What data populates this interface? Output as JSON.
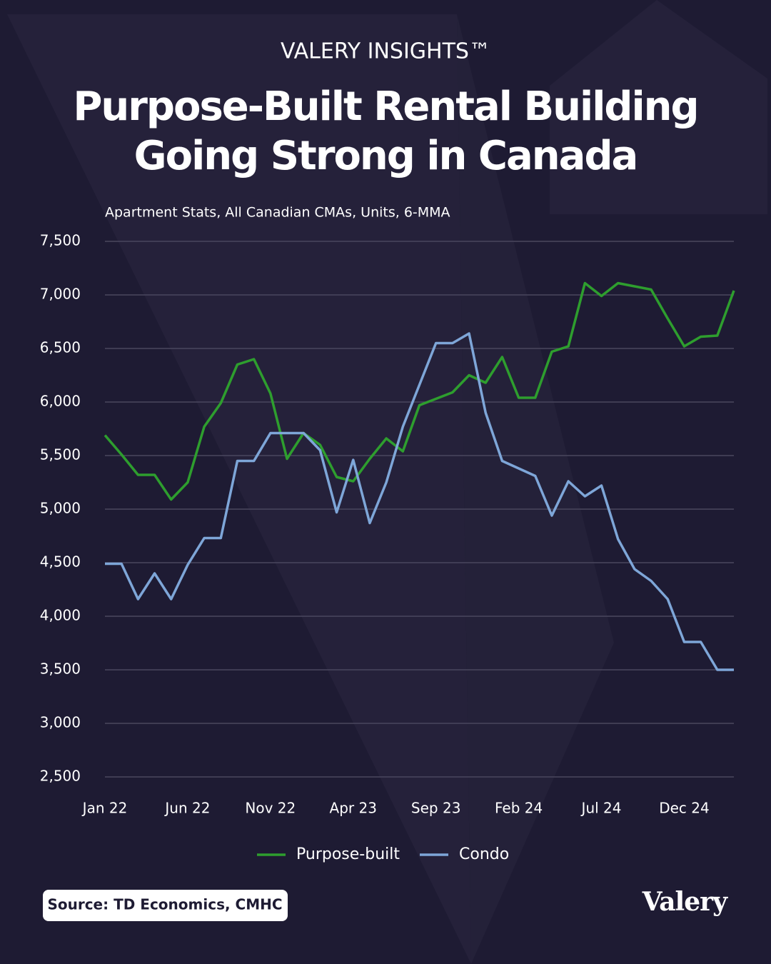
{
  "brand": "VALERY INSIGHTS™",
  "source": "Source: TD Economics, CMHC",
  "logo": "Valery",
  "chart_data": {
    "type": "line",
    "title": [
      "Purpose-Built Rental Building",
      "Going Strong in Canada"
    ],
    "subtitle": "Apartment Stats, All Canadian CMAs, Units, 6-MMA",
    "categories": [
      "Jan 22",
      null,
      null,
      null,
      null,
      "Jun 22",
      null,
      null,
      null,
      null,
      "Nov 22",
      null,
      null,
      null,
      null,
      "Apr 23",
      null,
      null,
      null,
      null,
      "Sep 23",
      null,
      null,
      null,
      null,
      "Feb 24",
      null,
      null,
      null,
      null,
      "Jul 24",
      null,
      null,
      null,
      null,
      "Dec 24",
      null,
      null,
      null
    ],
    "series": [
      {
        "name": "Purpose-built",
        "color": "#2e9e2e",
        "values": [
          5690,
          5510,
          5320,
          5320,
          5090,
          5250,
          5770,
          5990,
          6350,
          6400,
          6080,
          5470,
          5710,
          5600,
          5300,
          5260,
          5470,
          5660,
          5540,
          5970,
          6030,
          6090,
          6250,
          6180,
          6420,
          6040,
          6040,
          6470,
          6520,
          7110,
          6990,
          7110,
          7080,
          7050,
          6780,
          6520,
          6610,
          6620,
          7040
        ]
      },
      {
        "name": "Condo",
        "color": "#7ea6d8",
        "values": [
          4490,
          4490,
          4160,
          4400,
          4160,
          4480,
          4730,
          4730,
          5450,
          5450,
          5710,
          5710,
          5710,
          5550,
          4970,
          5460,
          4870,
          5250,
          5770,
          6160,
          6550,
          6550,
          6640,
          5900,
          5450,
          5380,
          5310,
          4940,
          5260,
          5120,
          5220,
          4720,
          4440,
          4330,
          4160,
          3760,
          3760,
          3500,
          3500
        ]
      }
    ],
    "ylim": [
      2500,
      7500
    ],
    "yticks": [
      {
        "value": 2500,
        "label": "2,500"
      },
      {
        "value": 3000,
        "label": "3,000"
      },
      {
        "value": 3500,
        "label": "3,500"
      },
      {
        "value": 4000,
        "label": "4,000"
      },
      {
        "value": 4500,
        "label": "4,500"
      },
      {
        "value": 5000,
        "label": "5,000"
      },
      {
        "value": 5500,
        "label": "5,500"
      },
      {
        "value": 6000,
        "label": "6,000"
      },
      {
        "value": 6500,
        "label": "6,500"
      },
      {
        "value": 7000,
        "label": "7,000"
      },
      {
        "value": 7500,
        "label": "7,500"
      }
    ],
    "grid": true,
    "legend": "bottom"
  }
}
